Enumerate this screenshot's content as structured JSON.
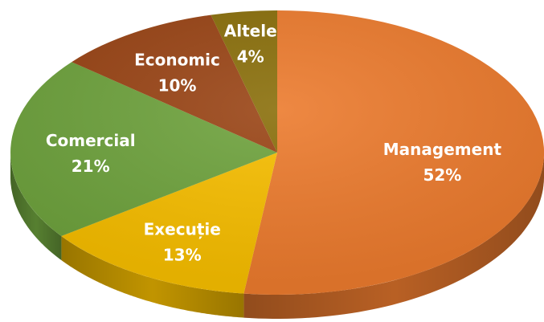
{
  "chart_data": {
    "type": "pie",
    "title": "",
    "style": "3d",
    "slices": [
      {
        "name": "Management",
        "label": "Management",
        "percent_label": "52%",
        "value": 52,
        "color": "#EC7B2E"
      },
      {
        "name": "Execuție",
        "label": "Execuție",
        "percent_label": "13%",
        "value": 13,
        "color": "#F7BE00"
      },
      {
        "name": "Comercial",
        "label": "Comercial",
        "percent_label": "21%",
        "value": 21,
        "color": "#6FA33E"
      },
      {
        "name": "Economic",
        "label": "Economic",
        "percent_label": "10%",
        "value": 10,
        "color": "#9A4516"
      },
      {
        "name": "Altele",
        "label": "Altele",
        "percent_label": "4%",
        "value": 4,
        "color": "#8A6F0B"
      }
    ]
  }
}
